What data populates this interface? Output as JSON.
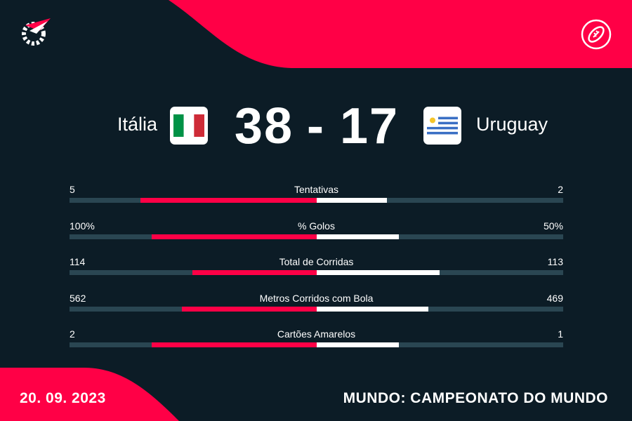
{
  "colors": {
    "background": "#0c1c26",
    "accent": "#ff0046",
    "track": "#2a4652",
    "away_bar": "#ffffff"
  },
  "icons": {
    "logo": "flashscore-logo-icon",
    "sport": "rugby-ball-icon"
  },
  "match": {
    "home_team": "Itália",
    "away_team": "Uruguay",
    "home_score": "38",
    "separator": "-",
    "away_score": "17",
    "home_flag": "italy-flag-icon",
    "away_flag": "uruguay-flag-icon"
  },
  "stats": [
    {
      "label": "Tentativas",
      "home": "5",
      "away": "2",
      "home_share": 0.714,
      "away_share": 0.286
    },
    {
      "label": "% Golos",
      "home": "100%",
      "away": "50%",
      "home_share": 0.667,
      "away_share": 0.333
    },
    {
      "label": "Total de Corridas",
      "home": "114",
      "away": "113",
      "home_share": 0.502,
      "away_share": 0.498
    },
    {
      "label": "Metros Corridos com Bola",
      "home": "562",
      "away": "469",
      "home_share": 0.545,
      "away_share": 0.455
    },
    {
      "label": "Cartões Amarelos",
      "home": "2",
      "away": "1",
      "home_share": 0.667,
      "away_share": 0.333
    }
  ],
  "footer": {
    "date": "20. 09. 2023",
    "competition": "MUNDO: CAMPEONATO DO MUNDO"
  }
}
